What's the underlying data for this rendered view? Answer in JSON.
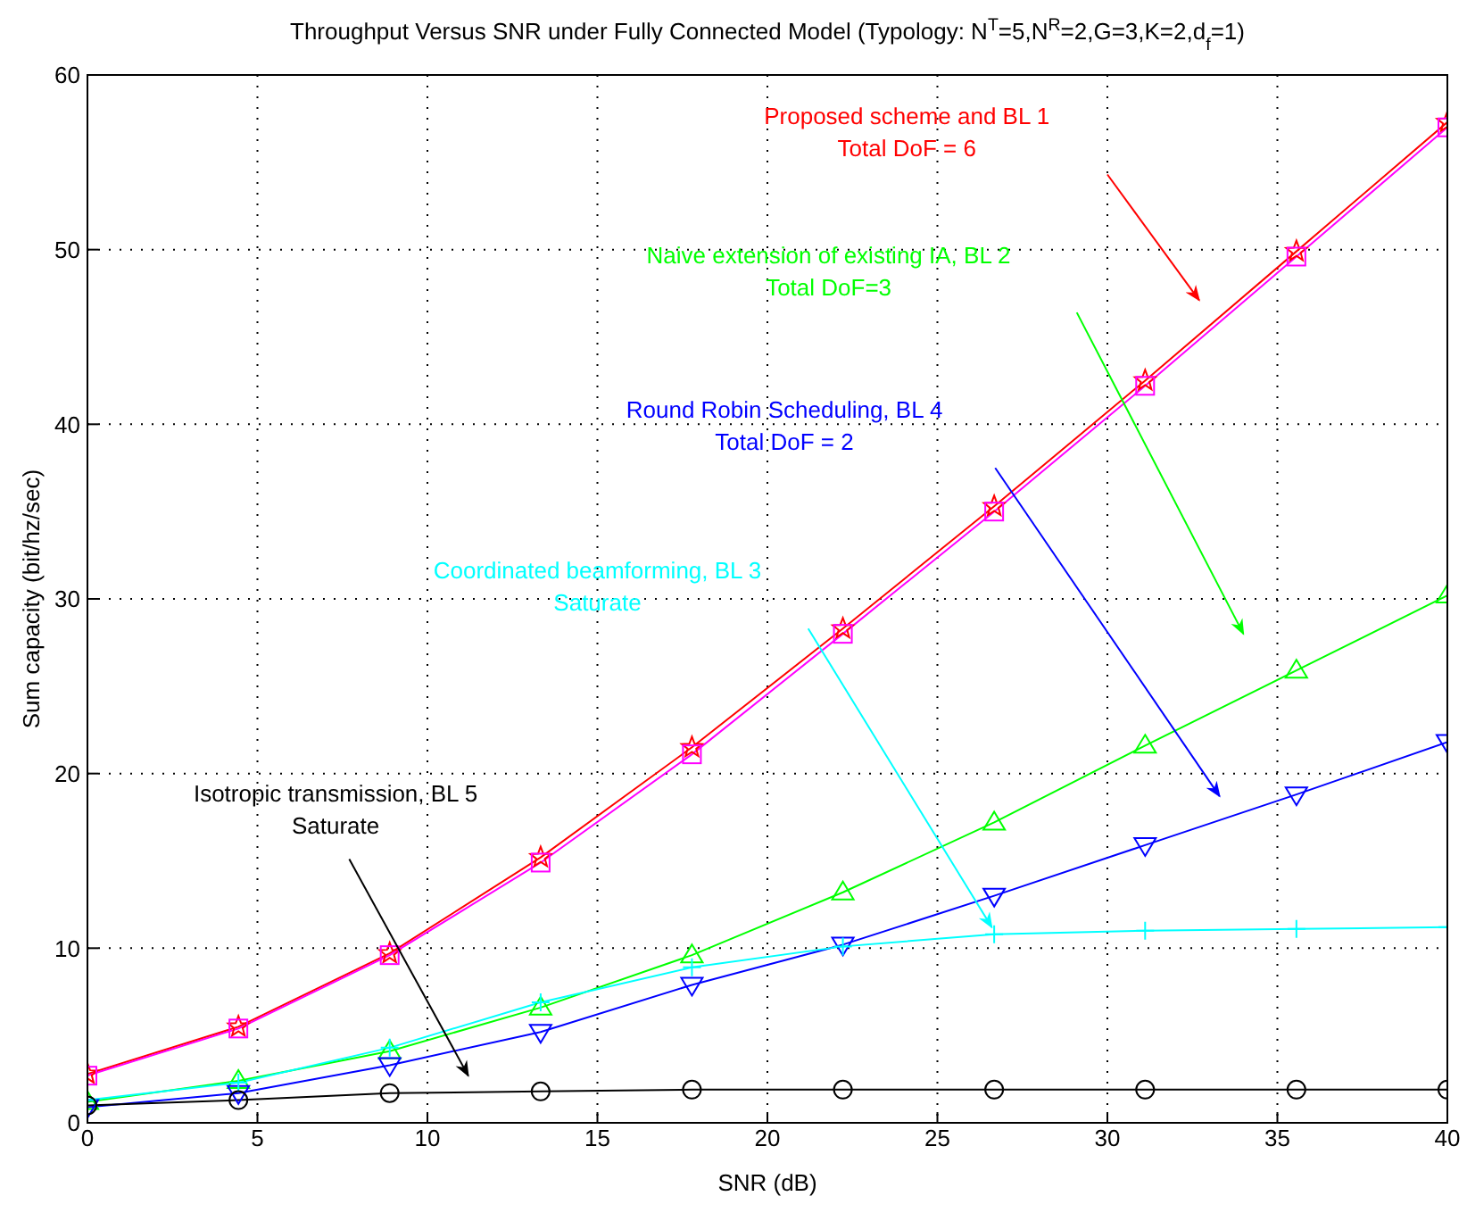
{
  "chart_data": {
    "type": "line",
    "title": "Throughput Versus SNR under Fully Connected Model (Typology: N$^{T}$=5,N$^{R}$=2,G=3,K=2,d$_{f}$=1)",
    "xlabel": "SNR (dB)",
    "ylabel": "Sum capacity (bit/hz/sec)",
    "x": [
      0,
      4.44,
      8.89,
      13.33,
      17.78,
      22.22,
      26.67,
      31.11,
      35.56,
      40
    ],
    "series": [
      {
        "name": "Proposed scheme and BL 1",
        "color": "#ff0000",
        "marker": "star",
        "values": [
          2.8,
          5.5,
          9.7,
          15.2,
          21.5,
          28.3,
          35.3,
          42.5,
          49.9,
          57.3
        ]
      },
      {
        "color": "#ff00ff",
        "marker": "square",
        "values": [
          2.7,
          5.4,
          9.6,
          14.9,
          21.1,
          28.0,
          35.0,
          42.2,
          49.6,
          57.0
        ]
      },
      {
        "name": "Naive extension of existing IA, BL 2",
        "color": "#00ff00",
        "marker": "triangle",
        "values": [
          1.2,
          2.4,
          4.1,
          6.6,
          9.6,
          13.2,
          17.2,
          21.6,
          25.9,
          30.2
        ]
      },
      {
        "name": "Round Robin Scheduling, BL 4",
        "color": "#0000ff",
        "marker": "triangle_down",
        "values": [
          0.9,
          1.7,
          3.3,
          5.2,
          7.9,
          10.2,
          13.0,
          15.9,
          18.8,
          21.8
        ]
      },
      {
        "name": "Coordinated beamforming, BL 3",
        "color": "#00ffff",
        "marker": "cross",
        "values": [
          1.3,
          2.3,
          4.3,
          6.9,
          8.9,
          10.1,
          10.8,
          11.0,
          11.1,
          11.2
        ]
      },
      {
        "name": "Isotropic transmission, BL 5",
        "color": "#000000",
        "marker": "circle",
        "values": [
          1.0,
          1.3,
          1.7,
          1.8,
          1.9,
          1.9,
          1.9,
          1.9,
          1.9,
          1.9
        ]
      }
    ],
    "annotations": [
      "Total DoF = 6",
      "Total DoF=3",
      "Total DoF = 2",
      "Saturate",
      "Saturate"
    ],
    "xlim": [
      0,
      40
    ],
    "xticks": [
      0,
      5,
      10,
      15,
      20,
      25,
      30,
      35,
      40
    ],
    "ylim": [
      0,
      60
    ],
    "yticks": [
      0,
      10,
      20,
      30,
      40,
      50,
      60
    ],
    "grid": true,
    "legend": false
  }
}
